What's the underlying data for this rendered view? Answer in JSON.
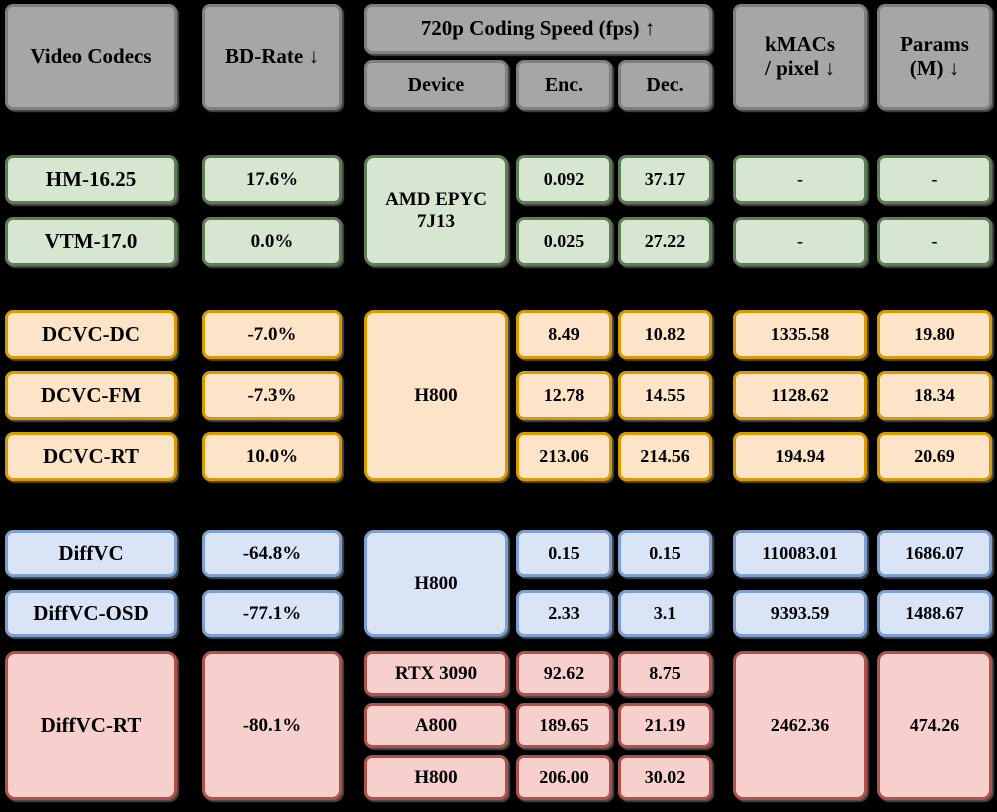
{
  "colors": {
    "background": "#000000",
    "header_fill": "#a6a6a6",
    "header_border": "#7f7f7f",
    "green_fill": "#d7e6d0",
    "green_border": "#5f7d57",
    "orange_fill": "#fde4c8",
    "orange_border": "#d79b00",
    "blue_fill": "#d9e5f7",
    "blue_border": "#7f9fd1",
    "red_fill": "#f7cfcc",
    "red_border": "#b0524c",
    "text": "#000000"
  },
  "header": {
    "col_codecs": "Video Codecs",
    "col_bdrate": "BD-Rate ↓",
    "group_speed": "720p Coding Speed (fps) ↑",
    "col_device": "Device",
    "col_enc": "Enc.",
    "col_dec": "Dec.",
    "col_kmacs": "kMACs\n/ pixel ↓",
    "col_params": "Params\n(M) ↓"
  },
  "traditional": {
    "device": "AMD EPYC\n7J13",
    "rows": [
      {
        "codec": "HM-16.25",
        "bdrate": "17.6%",
        "enc": "0.092",
        "dec": "37.17",
        "kmacs": "-",
        "params": "-"
      },
      {
        "codec": "VTM-17.0",
        "bdrate": "0.0%",
        "enc": "0.025",
        "dec": "27.22",
        "kmacs": "-",
        "params": "-"
      }
    ]
  },
  "neural": {
    "device": "H800",
    "rows": [
      {
        "codec": "DCVC-DC",
        "bdrate": "-7.0%",
        "enc": "8.49",
        "dec": "10.82",
        "kmacs": "1335.58",
        "params": "19.80"
      },
      {
        "codec": "DCVC-FM",
        "bdrate": "-7.3%",
        "enc": "12.78",
        "dec": "14.55",
        "kmacs": "1128.62",
        "params": "18.34"
      },
      {
        "codec": "DCVC-RT",
        "bdrate": "10.0%",
        "enc": "213.06",
        "dec": "214.56",
        "kmacs": "194.94",
        "params": "20.69"
      }
    ]
  },
  "diffusion": {
    "device": "H800",
    "rows": [
      {
        "codec": "DiffVC",
        "bdrate": "-64.8%",
        "enc": "0.15",
        "dec": "0.15",
        "kmacs": "110083.01",
        "params": "1686.07"
      },
      {
        "codec": "DiffVC-OSD",
        "bdrate": "-77.1%",
        "enc": "2.33",
        "dec": "3.1",
        "kmacs": "9393.59",
        "params": "1488.67"
      }
    ]
  },
  "diffvc_rt": {
    "codec": "DiffVC-RT",
    "bdrate": "-80.1%",
    "kmacs": "2462.36",
    "params": "474.26",
    "rows": [
      {
        "device": "RTX 3090",
        "enc": "92.62",
        "dec": "8.75"
      },
      {
        "device": "A800",
        "enc": "189.65",
        "dec": "21.19"
      },
      {
        "device": "H800",
        "enc": "206.00",
        "dec": "30.02"
      }
    ]
  },
  "chart_data": {
    "type": "table",
    "title": "Video codec comparison",
    "columns": [
      "Video Codecs",
      "BD-Rate ↓",
      "Device",
      "Enc.",
      "Dec.",
      "kMACs / pixel ↓",
      "Params (M) ↓"
    ],
    "column_group": {
      "label": "720p Coding Speed (fps) ↑",
      "spans": [
        "Device",
        "Enc.",
        "Dec."
      ]
    },
    "rows": [
      [
        "HM-16.25",
        "17.6%",
        "AMD EPYC 7J13",
        "0.092",
        "37.17",
        "-",
        "-"
      ],
      [
        "VTM-17.0",
        "0.0%",
        "AMD EPYC 7J13",
        "0.025",
        "27.22",
        "-",
        "-"
      ],
      [
        "DCVC-DC",
        "-7.0%",
        "H800",
        "8.49",
        "10.82",
        "1335.58",
        "19.80"
      ],
      [
        "DCVC-FM",
        "-7.3%",
        "H800",
        "12.78",
        "14.55",
        "1128.62",
        "18.34"
      ],
      [
        "DCVC-RT",
        "10.0%",
        "H800",
        "213.06",
        "214.56",
        "194.94",
        "20.69"
      ],
      [
        "DiffVC",
        "-64.8%",
        "H800",
        "0.15",
        "0.15",
        "110083.01",
        "1686.07"
      ],
      [
        "DiffVC-OSD",
        "-77.1%",
        "H800",
        "2.33",
        "3.1",
        "9393.59",
        "1488.67"
      ],
      [
        "DiffVC-RT",
        "-80.1%",
        "RTX 3090",
        "92.62",
        "8.75",
        "2462.36",
        "474.26"
      ],
      [
        "DiffVC-RT",
        "-80.1%",
        "A800",
        "189.65",
        "21.19",
        "2462.36",
        "474.26"
      ],
      [
        "DiffVC-RT",
        "-80.1%",
        "H800",
        "206.00",
        "30.02",
        "2462.36",
        "474.26"
      ]
    ]
  }
}
